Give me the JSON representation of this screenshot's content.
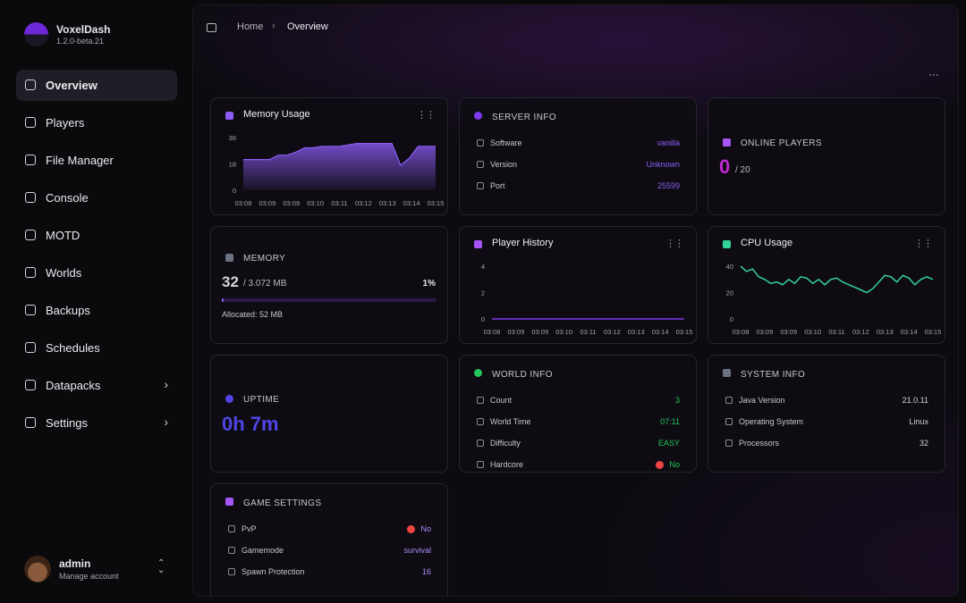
{
  "sidebar": {
    "app_name": "VoxelDash",
    "version": "1.2.0-beta.21",
    "nav": [
      "Overview",
      "Players",
      "File Manager",
      "Console",
      "MOTD",
      "Worlds",
      "Backups",
      "Schedules",
      "Datapacks",
      "Settings"
    ],
    "user": {
      "name": "admin",
      "subtitle": "Manage account"
    }
  },
  "breadcrumb": [
    "Home",
    "Overview"
  ],
  "chart_data": [
    {
      "type": "area",
      "title": "Memory Usage",
      "color": "#8b5cf6",
      "x_labels": [
        "03:08",
        "03:09",
        "03:09",
        "03:10",
        "03:11",
        "03:12",
        "03:13",
        "03:14",
        "03:15"
      ],
      "values": [
        21,
        21,
        21,
        21,
        24,
        24,
        26,
        29,
        29,
        30,
        30,
        30,
        31,
        32,
        32,
        32,
        32,
        32,
        17,
        22,
        30,
        30,
        30
      ],
      "ylim": [
        0,
        36
      ],
      "yticks": [
        0,
        18,
        36
      ]
    },
    {
      "type": "line",
      "title": "Player History",
      "color": "#7c3aed",
      "x_labels": [
        "03:08",
        "03:09",
        "03:09",
        "03:10",
        "03:11",
        "03:12",
        "03:13",
        "03:14",
        "03:15"
      ],
      "values": [
        0,
        0,
        0,
        0,
        0,
        0,
        0,
        0,
        0
      ],
      "ylim": [
        0,
        4
      ],
      "yticks": [
        0,
        2,
        4
      ]
    },
    {
      "type": "line",
      "title": "CPU Usage",
      "color": "#34d399",
      "x_labels": [
        "03:08",
        "03:09",
        "03:09",
        "03:10",
        "03:11",
        "03:12",
        "03:13",
        "03:14",
        "03:15"
      ],
      "values": [
        40,
        36,
        38,
        32,
        30,
        27,
        28,
        26,
        30,
        27,
        32,
        31,
        27,
        30,
        26,
        30,
        31,
        28,
        26,
        24,
        22,
        20,
        23,
        28,
        33,
        32,
        28,
        33,
        31,
        26,
        30,
        32,
        30
      ],
      "ylim": [
        0,
        40
      ],
      "yticks": [
        0,
        20,
        40
      ]
    }
  ],
  "server_info": {
    "title": "SERVER INFO",
    "rows": [
      {
        "label": "Software",
        "value": "vanilla"
      },
      {
        "label": "Version",
        "value": "Unknown"
      },
      {
        "label": "Port",
        "value": "25599"
      }
    ]
  },
  "online_players": {
    "title": "ONLINE PLAYERS",
    "count": 0,
    "max": "/ 20"
  },
  "memory": {
    "title": "MEMORY",
    "used": 32,
    "total": "/ 3.072 MB",
    "percent": 1,
    "percent_label": "1%",
    "allocated": "Allocated: 52 MB"
  },
  "uptime": {
    "title": "UPTIME",
    "value": "0h 7m"
  },
  "world_info": {
    "title": "WORLD INFO",
    "rows": [
      {
        "label": "Count",
        "value": "3"
      },
      {
        "label": "World Time",
        "value": "07:11"
      },
      {
        "label": "Difficulty",
        "value": "EASY"
      },
      {
        "label": "Hardcore",
        "value": "No"
      }
    ]
  },
  "system_info": {
    "title": "SYSTEM INFO",
    "rows": [
      {
        "label": "Java Version",
        "value": "21.0.11"
      },
      {
        "label": "Operating System",
        "value": "Linux"
      },
      {
        "label": "Processors",
        "value": "32"
      }
    ]
  },
  "game_settings": {
    "title": "GAME SETTINGS",
    "rows": [
      {
        "label": "PvP",
        "value": "No"
      },
      {
        "label": "Gamemode",
        "value": "survival"
      },
      {
        "label": "Spawn Protection",
        "value": "16"
      }
    ]
  }
}
